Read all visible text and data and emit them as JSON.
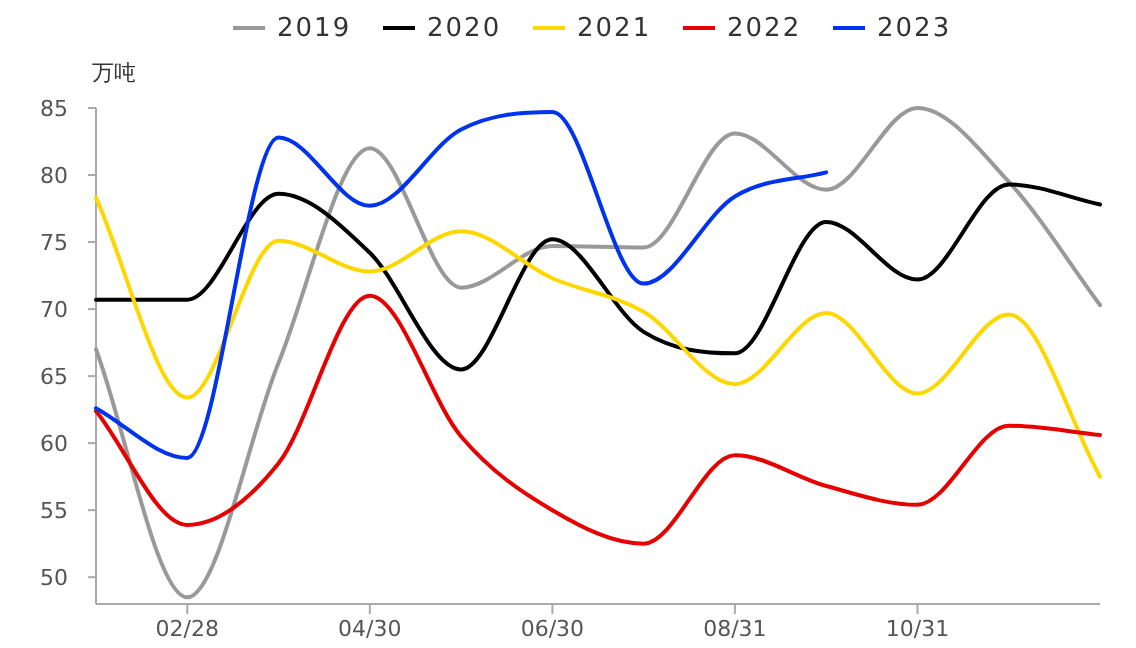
{
  "chart_data": {
    "type": "line",
    "ylabel": "万吨",
    "categories": [
      null,
      "02/28",
      null,
      "04/30",
      null,
      "06/30",
      null,
      "08/31",
      null,
      "10/31",
      null,
      null
    ],
    "ylim": [
      48,
      85
    ],
    "yticks": [
      50,
      55,
      60,
      65,
      70,
      75,
      80,
      85
    ],
    "grid": false,
    "legend": "top",
    "marker": "none",
    "line_style": "solid",
    "series": [
      {
        "name": "2019",
        "color": "#999999",
        "values": [
          67,
          48.5,
          66,
          82,
          71.6,
          74.7,
          74.6,
          83.1,
          78.9,
          85,
          79.5,
          70.3
        ]
      },
      {
        "name": "2020",
        "color": "#000000",
        "values": [
          70.7,
          70.7,
          78.6,
          74.2,
          65.5,
          75.2,
          68.3,
          66.7,
          76.5,
          72.2,
          79.3,
          77.8
        ]
      },
      {
        "name": "2021",
        "color": "#ffd700",
        "values": [
          78.3,
          63.4,
          75.1,
          72.8,
          75.8,
          72.3,
          69.8,
          64.4,
          69.7,
          63.7,
          69.6,
          57.5
        ]
      },
      {
        "name": "2022",
        "color": "#e60000",
        "values": [
          62.4,
          53.9,
          58.5,
          71.0,
          60.5,
          55.0,
          52.5,
          59.1,
          56.8,
          55.4,
          61.3,
          60.6
        ]
      },
      {
        "name": "2023",
        "color": "#0033ee",
        "values": [
          62.6,
          58.9,
          82.8,
          77.7,
          83.4,
          84.7,
          71.9,
          78.4,
          80.2,
          null,
          null,
          null
        ]
      }
    ]
  }
}
